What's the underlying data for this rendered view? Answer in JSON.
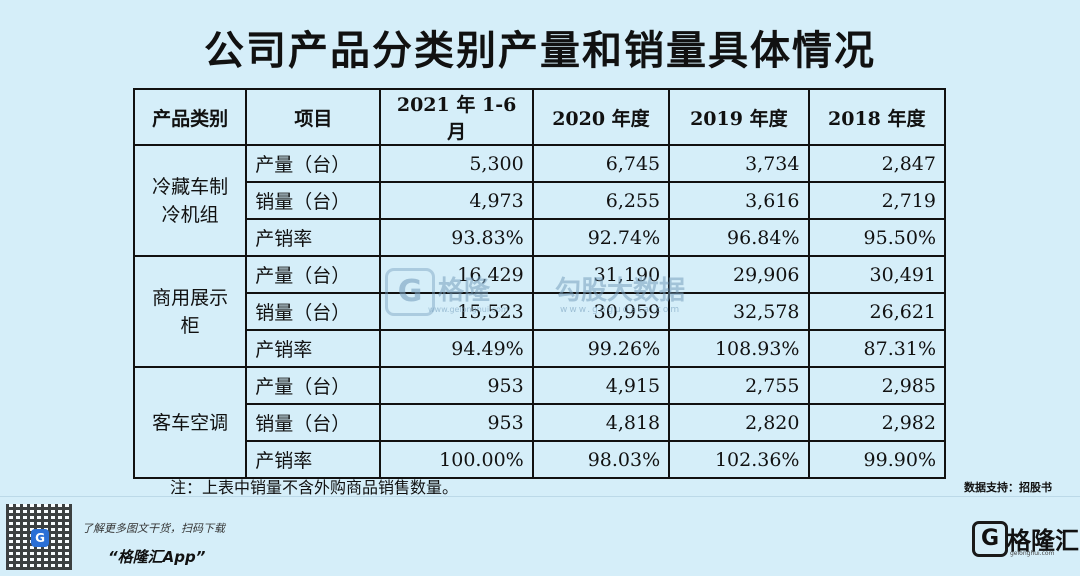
{
  "title": "公司产品分类别产量和销量具体情况",
  "table": {
    "headers": [
      "产品类别",
      "项目",
      "2021 年 1-6 月",
      "2020 年度",
      "2019 年度",
      "2018 年度"
    ],
    "groups": [
      {
        "category": "冷藏车制冷机组",
        "category_lines": [
          "冷藏车制",
          "冷机组"
        ],
        "rows": [
          {
            "item": "产量（台）",
            "values": [
              "5,300",
              "6,745",
              "3,734",
              "2,847"
            ]
          },
          {
            "item": "销量（台）",
            "values": [
              "4,973",
              "6,255",
              "3,616",
              "2,719"
            ]
          },
          {
            "item": "产销率",
            "values": [
              "93.83%",
              "92.74%",
              "96.84%",
              "95.50%"
            ]
          }
        ]
      },
      {
        "category": "商用展示柜",
        "category_lines": [
          "商用展示",
          "柜"
        ],
        "rows": [
          {
            "item": "产量（台）",
            "values": [
              "16,429",
              "31,190",
              "29,906",
              "30,491"
            ]
          },
          {
            "item": "销量（台）",
            "values": [
              "15,523",
              "30,959",
              "32,578",
              "26,621"
            ]
          },
          {
            "item": "产销率",
            "values": [
              "94.49%",
              "99.26%",
              "108.93%",
              "87.31%"
            ]
          }
        ]
      },
      {
        "category": "客车空调",
        "category_lines": [
          "客车空调"
        ],
        "rows": [
          {
            "item": "产量（台）",
            "values": [
              "953",
              "4,915",
              "2,755",
              "2,985"
            ]
          },
          {
            "item": "销量（台）",
            "values": [
              "953",
              "4,818",
              "2,820",
              "2,982"
            ]
          },
          {
            "item": "产销率",
            "values": [
              "100.00%",
              "98.03%",
              "102.36%",
              "99.90%"
            ]
          }
        ]
      }
    ]
  },
  "note": "注：上表中销量不含外购商品销售数量。",
  "source": "数据支持：招股书",
  "watermark": {
    "logo_letter": "G",
    "brand": "格隆",
    "brand_url": "www.gelonghui.com",
    "second": "勾股大数据",
    "second_url": "www.gogudata.com"
  },
  "footer": {
    "qr_logo_letter": "G",
    "promo_line": "了解更多图文干货，扫码下载",
    "app_name": "“格隆汇App”",
    "brand_letter": "G",
    "brand_name": "格隆汇",
    "brand_url": "gelonghui.com"
  }
}
